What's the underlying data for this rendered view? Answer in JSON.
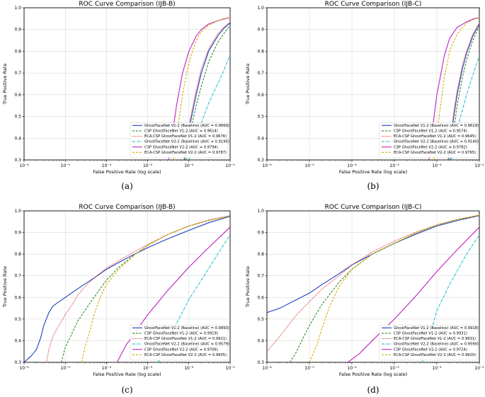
{
  "chart_data": [
    {
      "type": "line",
      "panel_label": "(a)",
      "title": "ROC Curve Comparison (IJB-B)",
      "xlabel": "False Positive Rate (log scale)",
      "ylabel": "True Positive Rate",
      "xscale": "log",
      "xlim": [
        1e-06,
        0.1
      ],
      "ylim": [
        0.3,
        1.0
      ],
      "x_ticks": [
        "10⁻⁶",
        "10⁻⁵",
        "10⁻⁴",
        "10⁻³",
        "10⁻²",
        "10⁻¹"
      ],
      "y_ticks": [
        "0.3",
        "0.4",
        "0.5",
        "0.6",
        "0.7",
        "0.8",
        "0.9",
        "1.0"
      ],
      "grid": true,
      "legend_position": "lower-right",
      "series": [
        {
          "name": "GhostFaceNet V1-2 (Baseline) (AUC = 0.9669)",
          "color": "#1f3fbf",
          "dash": "solid",
          "x": [
            0.0078,
            0.01,
            0.015,
            0.02,
            0.03,
            0.05,
            0.07,
            0.1
          ],
          "y": [
            0.3,
            0.44,
            0.6,
            0.7,
            0.8,
            0.87,
            0.905,
            0.93
          ]
        },
        {
          "name": "CSP GhostFaceNet V1-2 (AUC = 0.9614)",
          "color": "#2e8b2e",
          "dash": "dashed",
          "x": [
            0.0085,
            0.01,
            0.015,
            0.02,
            0.03,
            0.05,
            0.07,
            0.1
          ],
          "y": [
            0.3,
            0.4,
            0.55,
            0.64,
            0.75,
            0.84,
            0.88,
            0.92
          ]
        },
        {
          "name": "ECA-CSP GhostFaceNet V1-2 (AUC = 0.9676)",
          "color": "#e0201e",
          "dash": "dotted",
          "x": [
            0.0075,
            0.01,
            0.015,
            0.02,
            0.03,
            0.05,
            0.07,
            0.1
          ],
          "y": [
            0.3,
            0.46,
            0.62,
            0.72,
            0.81,
            0.88,
            0.91,
            0.935
          ]
        },
        {
          "name": "GhostFaceNet V2-2 (Baseline) (AUC = 0.9195)",
          "color": "#17b8c8",
          "dash": "dashdot",
          "x": [
            0.01,
            0.015,
            0.02,
            0.03,
            0.05,
            0.07,
            0.1
          ],
          "y": [
            0.3,
            0.4,
            0.47,
            0.56,
            0.65,
            0.71,
            0.785
          ]
        },
        {
          "name": "CSP GhostFaceNet V2-2 (AUC = 0.9794)",
          "color": "#c020c0",
          "dash": "solid",
          "x": [
            0.0032,
            0.004,
            0.005,
            0.007,
            0.01,
            0.015,
            0.02,
            0.03,
            0.05,
            0.07,
            0.1
          ],
          "y": [
            0.3,
            0.42,
            0.55,
            0.7,
            0.8,
            0.87,
            0.9,
            0.925,
            0.94,
            0.948,
            0.955
          ]
        },
        {
          "name": "ECA-CSP GhostFaceNet V2-2 (AUC = 0.9787)",
          "color": "#d4b000",
          "dash": "dashed",
          "x": [
            0.0042,
            0.005,
            0.007,
            0.01,
            0.015,
            0.02,
            0.03,
            0.05,
            0.07,
            0.1
          ],
          "y": [
            0.3,
            0.4,
            0.6,
            0.75,
            0.85,
            0.89,
            0.92,
            0.94,
            0.95,
            0.955
          ]
        }
      ]
    },
    {
      "type": "line",
      "panel_label": "(b)",
      "title": "ROC Curve Comparison (IJB-C)",
      "xlabel": "False Positive Rate (log scale)",
      "ylabel": "True Positive Rate",
      "xscale": "log",
      "xlim": [
        1e-06,
        0.1
      ],
      "ylim": [
        0.3,
        1.0
      ],
      "x_ticks": [
        "10⁻⁶",
        "10⁻⁵",
        "10⁻⁴",
        "10⁻³",
        "10⁻²",
        "10⁻¹"
      ],
      "y_ticks": [
        "0.3",
        "0.4",
        "0.5",
        "0.6",
        "0.7",
        "0.8",
        "0.9",
        "1.0"
      ],
      "grid": true,
      "legend_position": "lower-right",
      "series": [
        {
          "name": "GhostFaceNet V1-2 (Baseline) (AUC = 0.9619)",
          "color": "#1f3fbf",
          "dash": "solid",
          "x": [
            0.019,
            0.025,
            0.03,
            0.04,
            0.05,
            0.07,
            0.1
          ],
          "y": [
            0.3,
            0.5,
            0.6,
            0.72,
            0.79,
            0.87,
            0.925
          ]
        },
        {
          "name": "CSP GhostFaceNet V1-2 (AUC = 0.9574)",
          "color": "#2e8b2e",
          "dash": "dashed",
          "x": [
            0.021,
            0.025,
            0.03,
            0.04,
            0.05,
            0.07,
            0.1
          ],
          "y": [
            0.3,
            0.44,
            0.55,
            0.68,
            0.76,
            0.85,
            0.915
          ]
        },
        {
          "name": "ECA-CSP GhostFaceNet V1-2 (AUC = 0.9645)",
          "color": "#e0201e",
          "dash": "dotted",
          "x": [
            0.018,
            0.025,
            0.03,
            0.04,
            0.05,
            0.07,
            0.1
          ],
          "y": [
            0.3,
            0.52,
            0.62,
            0.74,
            0.8,
            0.88,
            0.93
          ]
        },
        {
          "name": "GhostFaceNet V2-2 (Baseline) (AUC = 0.9140)",
          "color": "#17b8c8",
          "dash": "dashdot",
          "x": [
            0.022,
            0.03,
            0.04,
            0.05,
            0.07,
            0.1
          ],
          "y": [
            0.3,
            0.44,
            0.53,
            0.6,
            0.69,
            0.78
          ]
        },
        {
          "name": "CSP GhostFaceNet V2-2 (AUC = 0.9782)",
          "color": "#c020c0",
          "dash": "solid",
          "x": [
            0.0065,
            0.008,
            0.01,
            0.015,
            0.02,
            0.03,
            0.05,
            0.07,
            0.1
          ],
          "y": [
            0.3,
            0.45,
            0.6,
            0.78,
            0.86,
            0.91,
            0.935,
            0.948,
            0.955
          ]
        },
        {
          "name": "ECA-CSP GhostFaceNet V2-2 (AUC = 0.9765)",
          "color": "#d4b000",
          "dash": "dashed",
          "x": [
            0.0085,
            0.01,
            0.015,
            0.02,
            0.03,
            0.05,
            0.07,
            0.1
          ],
          "y": [
            0.3,
            0.42,
            0.68,
            0.8,
            0.88,
            0.93,
            0.945,
            0.955
          ]
        }
      ]
    },
    {
      "type": "line",
      "panel_label": "(c)",
      "title": "ROC Curve Comparison (IJB-B)",
      "xlabel": "False Positive Rate (log scale)",
      "ylabel": "True Positive Rate",
      "xscale": "log",
      "xlim": [
        1e-06,
        0.1
      ],
      "ylim": [
        0.3,
        1.0
      ],
      "x_ticks": [
        "10⁻⁶",
        "10⁻⁵",
        "10⁻⁴",
        "10⁻³",
        "10⁻²",
        "10⁻¹"
      ],
      "y_ticks": [
        "0.3",
        "0.4",
        "0.5",
        "0.6",
        "0.7",
        "0.8",
        "0.9",
        "1.0"
      ],
      "grid": true,
      "legend_position": "lower-right",
      "series": [
        {
          "name": "GhostFaceNet V1-2 (Baseline) (AUC = 0.9893)",
          "color": "#1f3fbf",
          "dash": "solid",
          "x": [
            1e-06,
            1.5e-06,
            2e-06,
            2.5e-06,
            3e-06,
            4e-06,
            5e-06,
            7e-06,
            1e-05,
            2e-05,
            5e-05,
            0.0001,
            0.0003,
            0.001,
            0.003,
            0.01,
            0.03,
            0.1
          ],
          "y": [
            0.3,
            0.33,
            0.36,
            0.41,
            0.47,
            0.53,
            0.56,
            0.58,
            0.6,
            0.64,
            0.69,
            0.73,
            0.78,
            0.83,
            0.87,
            0.91,
            0.945,
            0.975
          ]
        },
        {
          "name": "CSP GhostFaceNet V1-2 (AUC = 0.9919)",
          "color": "#2e8b2e",
          "dash": "dashed",
          "x": [
            8e-06,
            1e-05,
            1.5e-05,
            2e-05,
            3e-05,
            5e-05,
            7e-05,
            0.0001,
            0.0002,
            0.0005,
            0.001,
            0.003,
            0.01,
            0.03,
            0.1
          ],
          "y": [
            0.3,
            0.37,
            0.44,
            0.49,
            0.54,
            0.6,
            0.64,
            0.68,
            0.74,
            0.8,
            0.84,
            0.89,
            0.93,
            0.955,
            0.978
          ]
        },
        {
          "name": "ECA-CSP GhostFaceNet V1-2 (AUC = 0.9921)",
          "color": "#e0201e",
          "dash": "dotted",
          "x": [
            3.5e-06,
            4e-06,
            5e-06,
            7e-06,
            1e-05,
            1.5e-05,
            2e-05,
            3e-05,
            5e-05,
            0.0001,
            0.0003,
            0.001,
            0.003,
            0.01,
            0.03,
            0.1
          ],
          "y": [
            0.3,
            0.36,
            0.42,
            0.47,
            0.52,
            0.57,
            0.61,
            0.65,
            0.69,
            0.735,
            0.79,
            0.845,
            0.89,
            0.93,
            0.958,
            0.978
          ]
        },
        {
          "name": "GhostFaceNet V2-2 (Baseline) (AUC = 0.9579)",
          "color": "#17b8c8",
          "dash": "dashdot",
          "x": [
            0.0018,
            0.003,
            0.005,
            0.01,
            0.02,
            0.05,
            0.1
          ],
          "y": [
            0.3,
            0.4,
            0.48,
            0.59,
            0.68,
            0.8,
            0.89
          ]
        },
        {
          "name": "CSP GhostFaceNet V2-2 (AUC = 0.9706)",
          "color": "#c020c0",
          "dash": "solid",
          "x": [
            0.00018,
            0.0003,
            0.001,
            0.003,
            0.01,
            0.03,
            0.1
          ],
          "y": [
            0.3,
            0.38,
            0.52,
            0.63,
            0.74,
            0.83,
            0.925
          ]
        },
        {
          "name": "ECA-CSP GhostFaceNet V2-2 (AUC = 0.9905)",
          "color": "#d4b000",
          "dash": "dashed",
          "x": [
            2.5e-05,
            3e-05,
            4e-05,
            5e-05,
            7e-05,
            0.0001,
            0.0002,
            0.0005,
            0.001,
            0.003,
            0.01,
            0.03,
            0.1
          ],
          "y": [
            0.3,
            0.37,
            0.45,
            0.52,
            0.6,
            0.66,
            0.73,
            0.8,
            0.84,
            0.89,
            0.93,
            0.955,
            0.978
          ]
        }
      ]
    },
    {
      "type": "line",
      "panel_label": "(d)",
      "title": "ROC Curve Comparison (IJB-C)",
      "xlabel": "False Positive Rate (log scale)",
      "ylabel": "True Positive Rate",
      "xscale": "log",
      "xlim": [
        1e-06,
        0.1
      ],
      "ylim": [
        0.3,
        1.0
      ],
      "x_ticks": [
        "10⁻⁶",
        "10⁻⁵",
        "10⁻⁴",
        "10⁻³",
        "10⁻²",
        "10⁻¹"
      ],
      "y_ticks": [
        "0.3",
        "0.4",
        "0.5",
        "0.6",
        "0.7",
        "0.8",
        "0.9",
        "1.0"
      ],
      "grid": true,
      "legend_position": "lower-right",
      "series": [
        {
          "name": "GhostFaceNet V1-2 (Baseline) (AUC = 0.9918)",
          "color": "#1f3fbf",
          "dash": "solid",
          "x": [
            1e-06,
            2e-06,
            5e-06,
            1e-05,
            2e-05,
            5e-05,
            0.0001,
            0.0003,
            0.001,
            0.003,
            0.01,
            0.03,
            0.1
          ],
          "y": [
            0.53,
            0.55,
            0.59,
            0.62,
            0.66,
            0.71,
            0.75,
            0.8,
            0.85,
            0.89,
            0.93,
            0.955,
            0.978
          ]
        },
        {
          "name": "CSP GhostFaceNet V1-2 (AUC = 0.9931)",
          "color": "#2e8b2e",
          "dash": "dashed",
          "x": [
            3.5e-06,
            5e-06,
            7e-06,
            1e-05,
            2e-05,
            5e-05,
            0.0001,
            0.0003,
            0.001,
            0.003,
            0.01,
            0.03,
            0.1
          ],
          "y": [
            0.3,
            0.35,
            0.41,
            0.47,
            0.57,
            0.67,
            0.73,
            0.8,
            0.85,
            0.895,
            0.935,
            0.96,
            0.98
          ]
        },
        {
          "name": "ECA-CSP GhostFaceNet V1-2 (AUC = 0.9931)",
          "color": "#e0201e",
          "dash": "dotted",
          "x": [
            1e-06,
            2e-06,
            5e-06,
            1e-05,
            2e-05,
            5e-05,
            0.0001,
            0.0003,
            0.001,
            0.003,
            0.01,
            0.03,
            0.1
          ],
          "y": [
            0.35,
            0.42,
            0.52,
            0.58,
            0.64,
            0.7,
            0.75,
            0.81,
            0.86,
            0.9,
            0.935,
            0.96,
            0.98
          ]
        },
        {
          "name": "GhostFaceNet V2-2 (Baseline) (AUC = 0.9590)",
          "color": "#17b8c8",
          "dash": "dashdot",
          "x": [
            0.0045,
            0.007,
            0.01,
            0.02,
            0.05,
            0.1
          ],
          "y": [
            0.3,
            0.43,
            0.54,
            0.66,
            0.8,
            0.89
          ]
        },
        {
          "name": "CSP GhostFaceNet V2-2 (AUC = 0.9724)",
          "color": "#c020c0",
          "dash": "solid",
          "x": [
            8e-05,
            0.00015,
            0.0003,
            0.001,
            0.003,
            0.01,
            0.03,
            0.1
          ],
          "y": [
            0.3,
            0.34,
            0.4,
            0.5,
            0.6,
            0.72,
            0.82,
            0.925
          ]
        },
        {
          "name": "ECA-CSP GhostFaceNet V2-2 (AUC = 0.9920)",
          "color": "#d4b000",
          "dash": "dashed",
          "x": [
            1e-05,
            1.5e-05,
            2e-05,
            3e-05,
            5e-05,
            0.0001,
            0.0003,
            0.001,
            0.003,
            0.01,
            0.03,
            0.1
          ],
          "y": [
            0.3,
            0.38,
            0.46,
            0.56,
            0.65,
            0.73,
            0.8,
            0.85,
            0.895,
            0.935,
            0.96,
            0.98
          ]
        }
      ]
    }
  ]
}
